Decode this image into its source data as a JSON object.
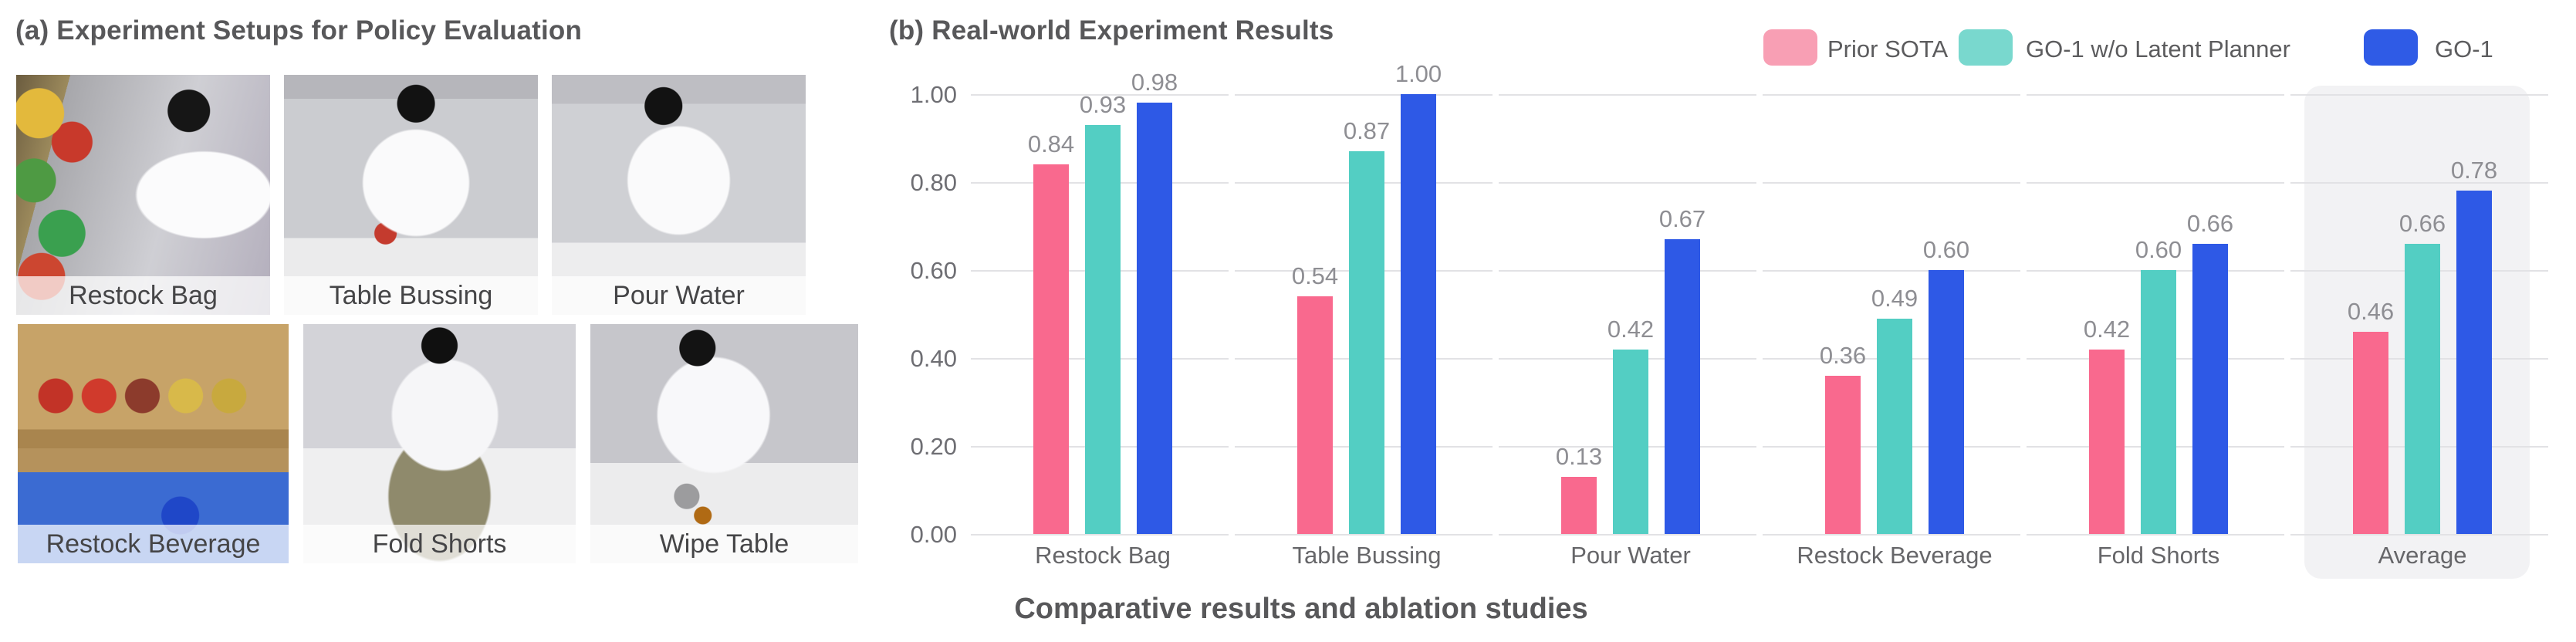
{
  "panel_a": {
    "title": "(a) Experiment Setups for Policy Evaluation",
    "tasks": [
      "Restock Bag",
      "Table Bussing",
      "Pour Water",
      "Restock Beverage",
      "Fold Shorts",
      "Wipe Table"
    ]
  },
  "panel_b": {
    "title": "(b) Real-world Experiment Results",
    "caption": "Comparative results and ablation studies"
  },
  "chart_data": {
    "type": "bar",
    "title": "(b) Real-world Experiment Results",
    "categories": [
      "Restock Bag",
      "Table Bussing",
      "Pour Water",
      "Restock Beverage",
      "Fold Shorts",
      "Average"
    ],
    "series": [
      {
        "name": "Prior SOTA",
        "values": [
          0.84,
          0.54,
          0.13,
          0.36,
          0.42,
          0.46
        ]
      },
      {
        "name": "GO-1 w/o Latent Planner",
        "values": [
          0.93,
          0.87,
          0.42,
          0.49,
          0.6,
          0.66
        ]
      },
      {
        "name": "GO-1",
        "values": [
          0.98,
          1.0,
          0.67,
          0.6,
          0.66,
          0.78
        ]
      }
    ],
    "ylim": [
      0,
      1.0
    ],
    "yticks": [
      0.0,
      0.2,
      0.4,
      0.6,
      0.8,
      1.0
    ],
    "ytick_labels": [
      "0.00",
      "0.20",
      "0.40",
      "0.60",
      "0.80",
      "1.00"
    ],
    "grid": true,
    "legend_position": "top-right",
    "highlighted_category": "Average",
    "value_label_format": "2-decimals"
  },
  "colors": {
    "bars": [
      "#F9698E",
      "#53CEC3",
      "#2E59E6"
    ],
    "legend_swatches": [
      "#F89FB4",
      "#79D8CE",
      "#2F5BE6"
    ],
    "gridline": "#E2E2E5",
    "highlight_bg": "#F2F2F4",
    "value_label": "#8E8E93",
    "axis_label": "#6E6E73"
  }
}
